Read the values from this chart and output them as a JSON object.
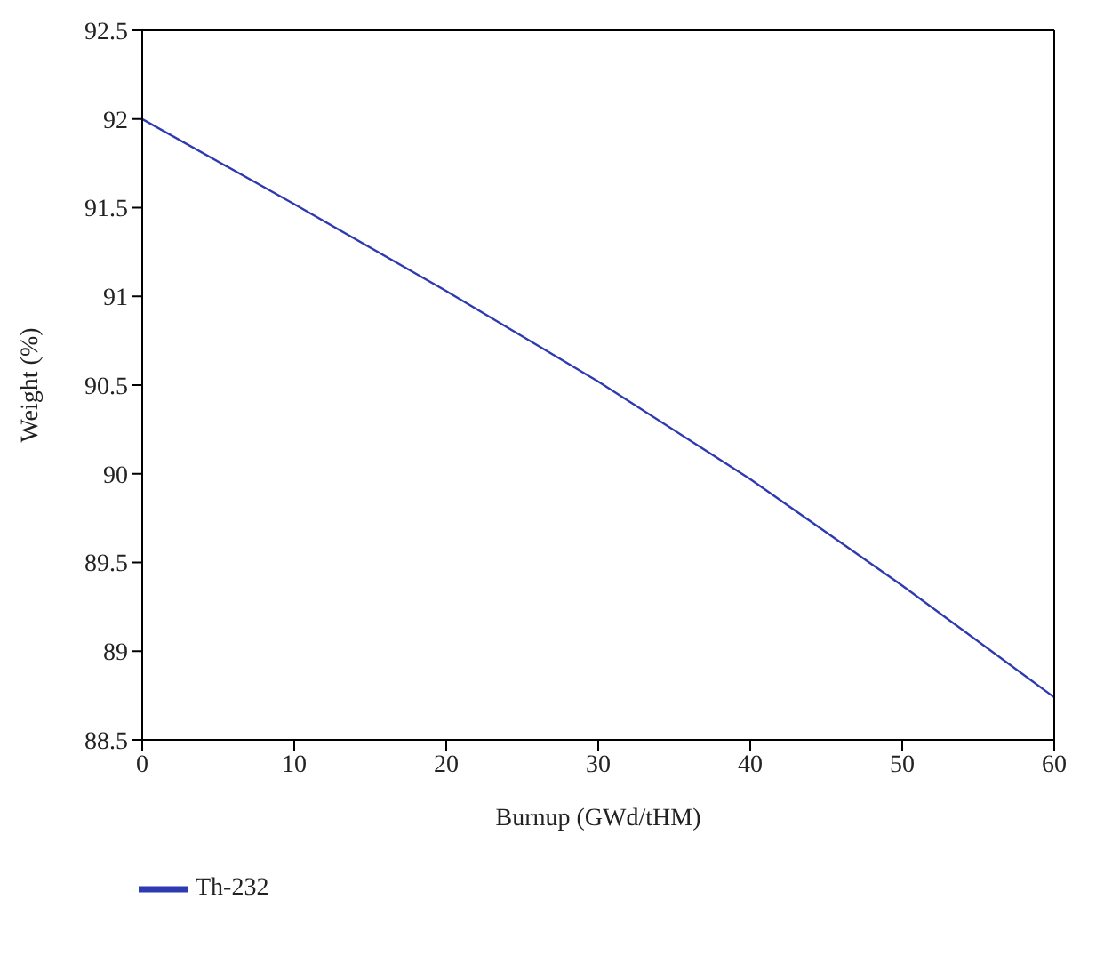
{
  "chart_data": {
    "type": "line",
    "xlabel": "Burnup (GWd/tHM)",
    "ylabel": "Weight (%)",
    "x": [
      0,
      10,
      20,
      30,
      40,
      50,
      60
    ],
    "series": [
      {
        "name": "Th-232",
        "color": "#2e3bb0",
        "values": [
          92.0,
          91.52,
          91.03,
          90.52,
          89.97,
          89.37,
          88.74
        ]
      }
    ],
    "xlim": [
      0,
      60
    ],
    "xticks": [
      0,
      10,
      20,
      30,
      40,
      50,
      60
    ],
    "ylim": [
      88.5,
      92.5
    ],
    "yticks": [
      88.5,
      89,
      89.5,
      90,
      90.5,
      91,
      91.5,
      92,
      92.5
    ],
    "grid": false,
    "legend": "bottom left",
    "marker": "none",
    "line_style": "solid"
  }
}
